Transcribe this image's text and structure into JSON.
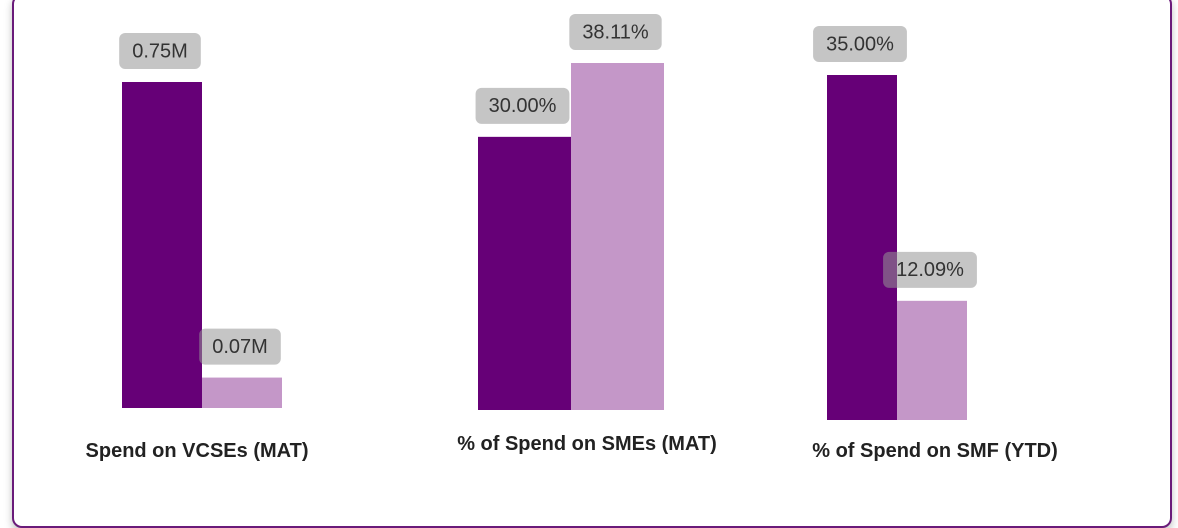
{
  "chart_data": [
    {
      "type": "bar",
      "title": "Spend on VCSEs (MAT)",
      "categories": [
        null,
        null
      ],
      "values": [
        0.75,
        0.07
      ],
      "value_labels": [
        "0.75M",
        "0.07M"
      ],
      "colors": [
        "#660077",
        "#c497c8"
      ]
    },
    {
      "type": "bar",
      "title": "% of Spend on SMEs (MAT)",
      "categories": [
        null,
        null
      ],
      "values": [
        30.0,
        38.11
      ],
      "value_labels": [
        "30.00%",
        "38.11%"
      ],
      "colors": [
        "#660077",
        "#c497c8"
      ]
    },
    {
      "type": "bar",
      "title": "% of Spend on SMF (YTD)",
      "categories": [
        null,
        null
      ],
      "values": [
        35.0,
        12.09
      ],
      "value_labels": [
        "35.00%",
        "12.09%"
      ],
      "colors": [
        "#660077",
        "#c497c8"
      ]
    }
  ]
}
